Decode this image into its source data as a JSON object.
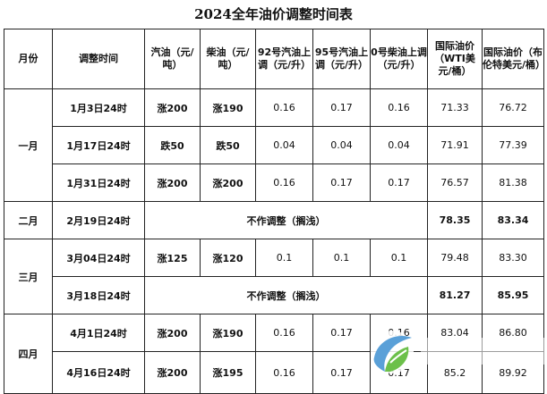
{
  "title": "2024全年油价调整时间表",
  "headers": [
    "月份",
    "调整时间",
    "汽油（元/吨）",
    "柴油（元/吨）",
    "92号汽油上调（元/升）",
    "95号汽油上调（元/升）",
    "0号柴油上调（元/升）",
    "国际油价（WTI美元/桶）",
    "国际油价（布伦特美元/桶）"
  ],
  "months": {
    "jan": "一月",
    "feb": "二月",
    "mar": "三月",
    "apr": "四月"
  },
  "no_adjust_text": "不作调整（搁浅）",
  "rows": [
    {
      "time": "1月3日24时",
      "gas": "涨200",
      "diesel": "涨190",
      "p92": "0.16",
      "p95": "0.17",
      "p0": "0.16",
      "wti": "71.33",
      "brent": "76.72"
    },
    {
      "time": "1月17日24时",
      "gas": "跌50",
      "diesel": "跌50",
      "p92": "0.04",
      "p95": "0.04",
      "p0": "0.04",
      "wti": "71.91",
      "brent": "77.39"
    },
    {
      "time": "1月31日24时",
      "gas": "涨200",
      "diesel": "涨200",
      "p92": "0.16",
      "p95": "0.17",
      "p0": "0.17",
      "wti": "76.57",
      "brent": "81.38"
    },
    {
      "time": "2月19日24时",
      "wti": "78.35",
      "brent": "83.34"
    },
    {
      "time": "3月04日24时",
      "gas": "涨125",
      "diesel": "涨120",
      "p92": "0.1",
      "p95": "0.1",
      "p0": "0.1",
      "wti": "79.48",
      "brent": "83.30"
    },
    {
      "time": "3月18日24时",
      "wti": "81.27",
      "brent": "85.95"
    },
    {
      "time": "4月1日24时",
      "gas": "涨200",
      "diesel": "涨190",
      "p92": "0.16",
      "p95": "0.17",
      "p0": "0.16",
      "wti": "83.04",
      "brent": "86.80"
    },
    {
      "time": "4月16日24时",
      "gas": "涨200",
      "diesel": "涨195",
      "p92": "0.16",
      "p95": "0.17",
      "p0": "0.17",
      "wti": "85.2",
      "brent": "89.92"
    }
  ],
  "colors": {
    "increase": "#e8231c",
    "decrease": "#22a23a",
    "border": "#222222"
  },
  "logo_icon": "leaf-logo-icon"
}
